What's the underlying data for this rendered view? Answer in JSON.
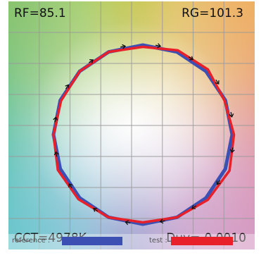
{
  "metrics": {
    "rf": "RF=85.1",
    "rg": "RG=101.3",
    "cct": "CCT=4978K",
    "duv": "Duv=-0.0010"
  },
  "legend": {
    "reference_label": "reference :",
    "test_label": "test :"
  },
  "colors": {
    "reference": "#3c50b4",
    "test": "#e8202a",
    "arrow": "#111111",
    "grid": "#9a9a9a"
  },
  "grid": {
    "visible": true,
    "divisions": 8
  },
  "chart_data": {
    "type": "vector-graphic",
    "bins": 16,
    "reference_radius": 1.0,
    "test_radius": [
      0.98,
      1.02,
      1.03,
      0.99,
      1.02,
      1.05,
      1.03,
      1.0,
      0.98,
      1.0,
      1.02,
      1.03,
      1.0,
      0.99,
      1.0,
      1.0
    ],
    "arrow_shift": [
      0.02,
      0.02,
      0.05,
      0.04,
      0.04,
      0.0,
      -0.02,
      -0.02,
      -0.01,
      -0.02,
      -0.02,
      -0.02,
      -0.02,
      0.0,
      0.01,
      0.02
    ]
  }
}
